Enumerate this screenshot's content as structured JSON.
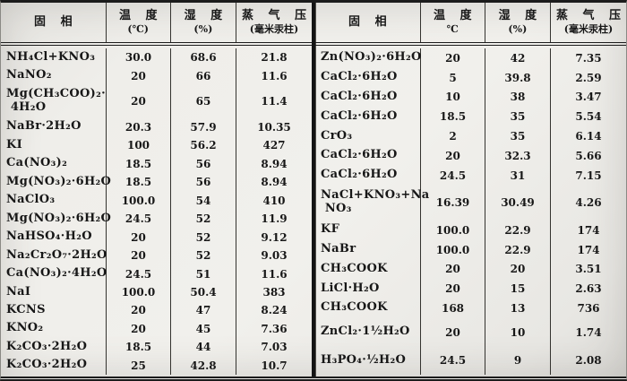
{
  "tables": [
    {
      "headers": {
        "solid_phase": "固 相",
        "temperature": "温 度",
        "temperature_unit": "(℃)",
        "humidity": "湿 度",
        "humidity_unit": "(%)",
        "vapor_pressure": "蒸 气 压",
        "vapor_pressure_unit": "(毫米汞柱)"
      },
      "rows": [
        {
          "solid_phase": "NH₄Cl+KNO₃",
          "temperature": "30.0",
          "humidity": "68.6",
          "vapor_pressure": "21.8"
        },
        {
          "solid_phase": "NaNO₂",
          "temperature": "20",
          "humidity": "66",
          "vapor_pressure": "11.6"
        },
        {
          "solid_phase": "Mg(CH₃COO)₂·\n 4H₂O",
          "temperature": "20",
          "humidity": "65",
          "vapor_pressure": "11.4"
        },
        {
          "solid_phase": "NaBr·2H₂O",
          "temperature": "20.3",
          "humidity": "57.9",
          "vapor_pressure": "10.35"
        },
        {
          "solid_phase": "KI",
          "temperature": "100",
          "humidity": "56.2",
          "vapor_pressure": "427"
        },
        {
          "solid_phase": "Ca(NO₃)₂",
          "temperature": "18.5",
          "humidity": "56",
          "vapor_pressure": "8.94"
        },
        {
          "solid_phase": "Mg(NO₃)₂·6H₂O",
          "temperature": "18.5",
          "humidity": "56",
          "vapor_pressure": "8.94"
        },
        {
          "solid_phase": "NaClO₃",
          "temperature": "100.0",
          "humidity": "54",
          "vapor_pressure": "410"
        },
        {
          "solid_phase": "Mg(NO₃)₂·6H₂O",
          "temperature": "24.5",
          "humidity": "52",
          "vapor_pressure": "11.9"
        },
        {
          "solid_phase": "NaHSO₄·H₂O",
          "temperature": "20",
          "humidity": "52",
          "vapor_pressure": "9.12"
        },
        {
          "solid_phase": "Na₂Cr₂O₇·2H₂O",
          "temperature": "20",
          "humidity": "52",
          "vapor_pressure": "9.03"
        },
        {
          "solid_phase": "Ca(NO₃)₂·4H₂O",
          "temperature": "24.5",
          "humidity": "51",
          "vapor_pressure": "11.6"
        },
        {
          "solid_phase": "NaI",
          "temperature": "100.0",
          "humidity": "50.4",
          "vapor_pressure": "383"
        },
        {
          "solid_phase": "KCNS",
          "temperature": "20",
          "humidity": "47",
          "vapor_pressure": "8.24"
        },
        {
          "solid_phase": "KNO₂",
          "temperature": "20",
          "humidity": "45",
          "vapor_pressure": "7.36"
        },
        {
          "solid_phase": "K₂CO₃·2H₂O",
          "temperature": "18.5",
          "humidity": "44",
          "vapor_pressure": "7.03"
        },
        {
          "solid_phase": "K₂CO₃·2H₂O",
          "temperature": "25",
          "humidity": "42.8",
          "vapor_pressure": "10.7"
        }
      ]
    },
    {
      "headers": {
        "solid_phase": "固 相",
        "temperature": "温 度",
        "temperature_unit": "℃",
        "humidity": "湿 度",
        "humidity_unit": "(%)",
        "vapor_pressure": "蒸 气 压",
        "vapor_pressure_unit": "(毫米汞柱)"
      },
      "rows": [
        {
          "solid_phase": "Zn(NO₃)₂·6H₂O",
          "temperature": "20",
          "humidity": "42",
          "vapor_pressure": "7.35"
        },
        {
          "solid_phase": "CaCl₂·6H₂O",
          "temperature": "5",
          "humidity": "39.8",
          "vapor_pressure": "2.59"
        },
        {
          "solid_phase": "CaCl₂·6H₂O",
          "temperature": "10",
          "humidity": "38",
          "vapor_pressure": "3.47"
        },
        {
          "solid_phase": "CaCl₂·6H₂O",
          "temperature": "18.5",
          "humidity": "35",
          "vapor_pressure": "5.54"
        },
        {
          "solid_phase": "CrO₃",
          "temperature": "2",
          "humidity": "35",
          "vapor_pressure": "6.14"
        },
        {
          "solid_phase": "CaCl₂·6H₂O",
          "temperature": "20",
          "humidity": "32.3",
          "vapor_pressure": "5.66"
        },
        {
          "solid_phase": "CaCl₂·6H₂O",
          "temperature": "24.5",
          "humidity": "31",
          "vapor_pressure": "7.15"
        },
        {
          "solid_phase": "NaCl+KNO₃+Na\n NO₃",
          "temperature": "16.39",
          "humidity": "30.49",
          "vapor_pressure": "4.26"
        },
        {
          "solid_phase": "KF",
          "temperature": "100.0",
          "humidity": "22.9",
          "vapor_pressure": "174"
        },
        {
          "solid_phase": "NaBr",
          "temperature": "100.0",
          "humidity": "22.9",
          "vapor_pressure": "174"
        },
        {
          "solid_phase": "CH₃COOK",
          "temperature": "20",
          "humidity": "20",
          "vapor_pressure": "3.51"
        },
        {
          "solid_phase": "LiCl·H₂O",
          "temperature": "20",
          "humidity": "15",
          "vapor_pressure": "2.63"
        },
        {
          "solid_phase": "CH₃COOK",
          "temperature": "168",
          "humidity": "13",
          "vapor_pressure": "736"
        },
        {
          "solid_phase": "ZnCl₂·1½H₂O",
          "temperature": "20",
          "humidity": "10",
          "vapor_pressure": "1.74"
        },
        {
          "solid_phase": "H₃PO₄·½H₂O",
          "temperature": "24.5",
          "humidity": "9",
          "vapor_pressure": "2.08"
        }
      ]
    }
  ]
}
